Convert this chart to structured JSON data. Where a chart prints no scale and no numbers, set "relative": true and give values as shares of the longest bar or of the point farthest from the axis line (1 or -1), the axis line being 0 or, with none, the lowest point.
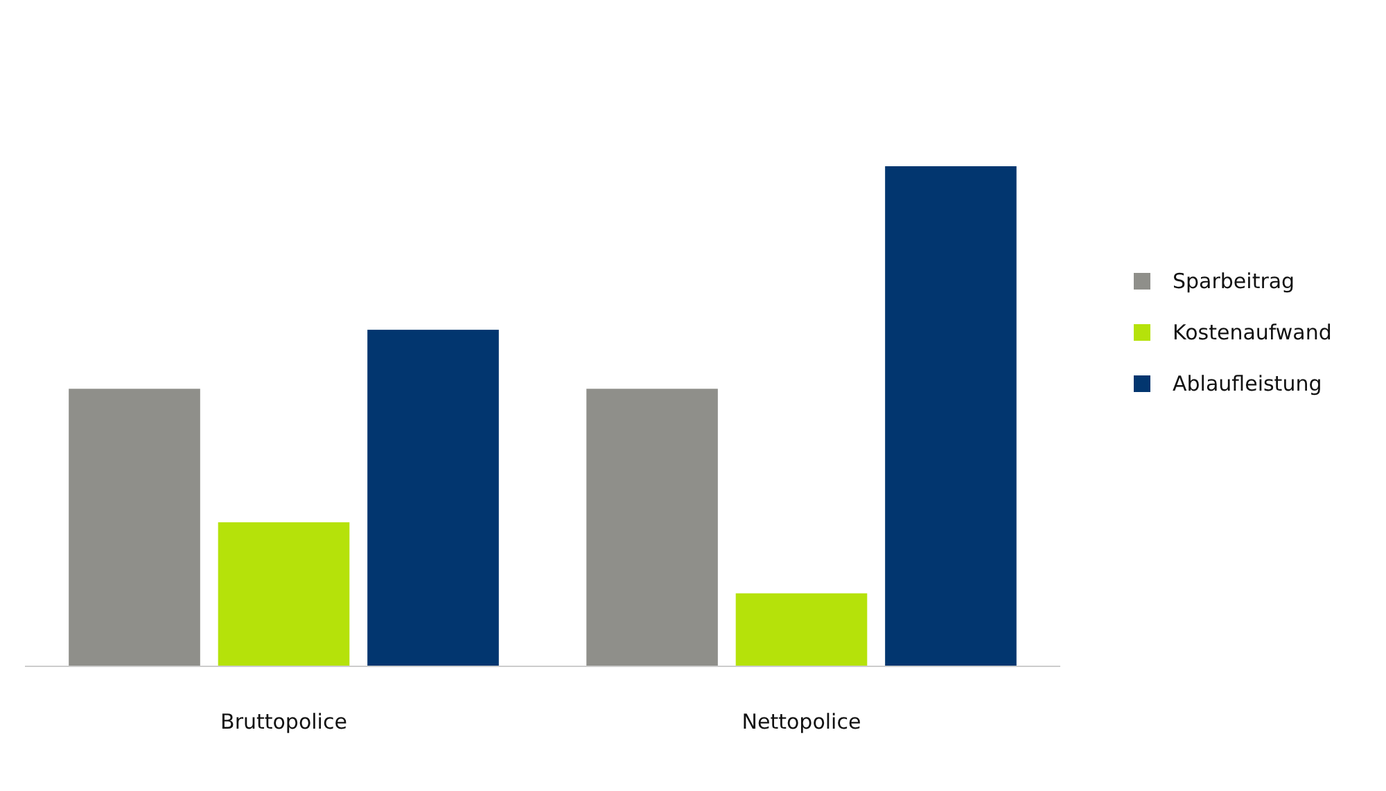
{
  "chart_data": {
    "type": "bar",
    "relative": true,
    "categories": [
      "Bruttopolice",
      "Nettopolice"
    ],
    "series": [
      {
        "name": "Sparbeitrag",
        "color": "#8f8f8a",
        "values": [
          0.555,
          0.555
        ]
      },
      {
        "name": "Kostenaufwand",
        "color": "#b5e20a",
        "values": [
          0.288,
          0.146
        ]
      },
      {
        "name": "Ablaufleistung",
        "color": "#02366f",
        "values": [
          0.673,
          1
        ]
      }
    ],
    "legend": "right"
  }
}
